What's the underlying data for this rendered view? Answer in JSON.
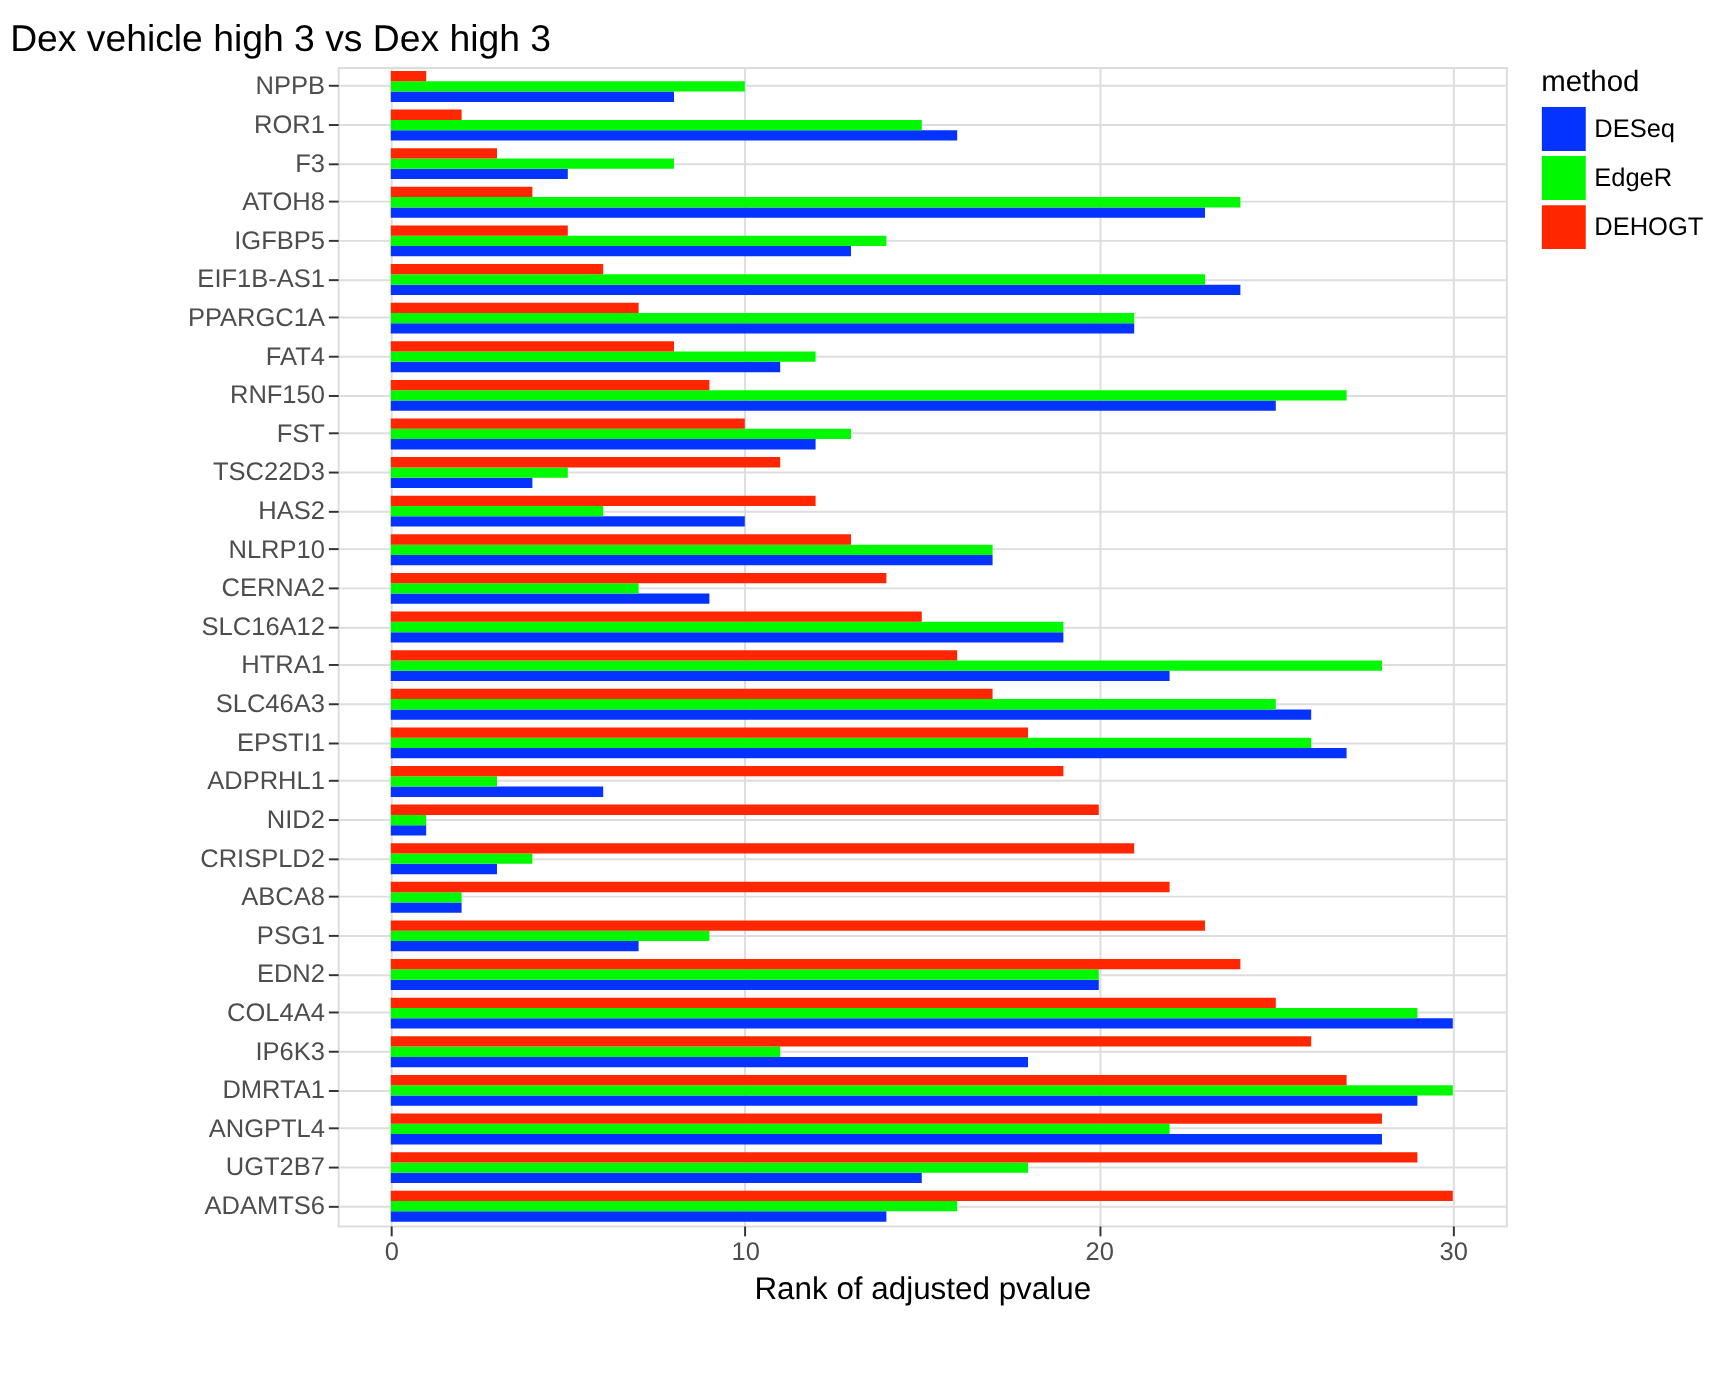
{
  "chart_data": {
    "type": "bar",
    "orientation": "horizontal",
    "title": "Dex vehicle high 3 vs Dex high 3",
    "xlabel": "Rank of adjusted pvalue",
    "legend_title": "method",
    "legend": "right",
    "grid": true,
    "categories": [
      "NPPB",
      "ROR1",
      "F3",
      "ATOH8",
      "IGFBP5",
      "EIF1B-AS1",
      "PPARGC1A",
      "FAT4",
      "RNF150",
      "FST",
      "TSC22D3",
      "HAS2",
      "NLRP10",
      "CERNA2",
      "SLC16A12",
      "HTRA1",
      "SLC46A3",
      "EPSTI1",
      "ADPRHL1",
      "NID2",
      "CRISPLD2",
      "ABCA8",
      "PSG1",
      "EDN2",
      "COL4A4",
      "IP6K3",
      "DMRTA1",
      "ANGPTL4",
      "UGT2B7",
      "ADAMTS6"
    ],
    "xlim": [
      -1.5,
      31.5
    ],
    "xticks": [
      0,
      10,
      20,
      30
    ],
    "series": [
      {
        "name": "DESeq",
        "color": "#0433ff",
        "values": [
          8,
          16,
          5,
          23,
          13,
          24,
          21,
          11,
          25,
          12,
          4,
          10,
          17,
          9,
          19,
          22,
          26,
          27,
          6,
          1,
          3,
          2,
          7,
          20,
          30,
          18,
          29,
          28,
          15,
          14
        ]
      },
      {
        "name": "EdgeR",
        "color": "#00f900",
        "values": [
          10,
          15,
          8,
          24,
          14,
          23,
          21,
          12,
          27,
          13,
          5,
          6,
          17,
          7,
          19,
          28,
          25,
          26,
          3,
          1,
          4,
          2,
          9,
          20,
          29,
          11,
          30,
          22,
          18,
          16
        ]
      },
      {
        "name": "DEHOGT",
        "color": "#ff2600",
        "values": [
          1,
          2,
          3,
          4,
          5,
          6,
          7,
          8,
          9,
          10,
          11,
          12,
          13,
          14,
          15,
          16,
          17,
          18,
          19,
          20,
          21,
          22,
          23,
          24,
          25,
          26,
          27,
          28,
          29,
          30
        ]
      }
    ]
  }
}
